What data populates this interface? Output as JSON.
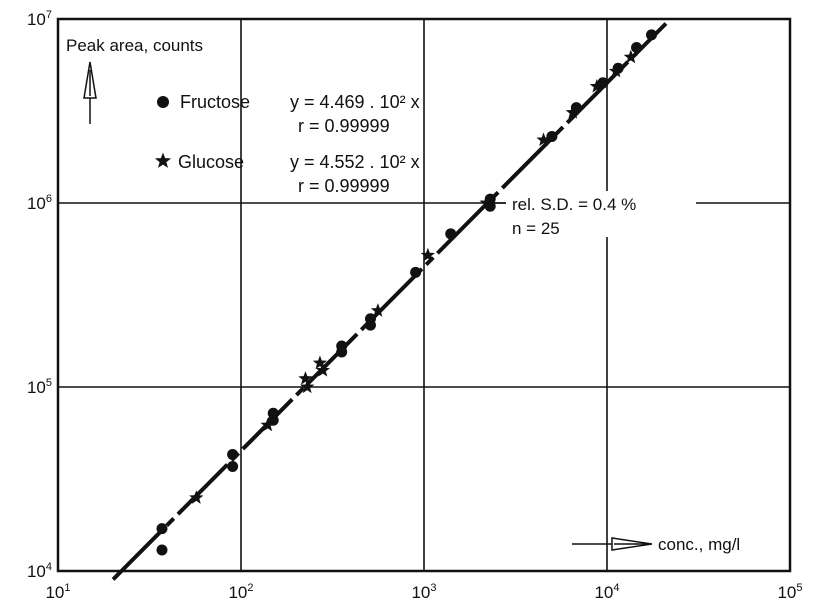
{
  "chart_data": {
    "type": "scatter",
    "xscale": "log",
    "yscale": "log",
    "xlim": [
      10,
      100000
    ],
    "ylim": [
      10000,
      10000000
    ],
    "grid": true,
    "x_ticks": [
      {
        "base": "10",
        "exp": "1"
      },
      {
        "base": "10",
        "exp": "2"
      },
      {
        "base": "10",
        "exp": "3"
      },
      {
        "base": "10",
        "exp": "4"
      },
      {
        "base": "10",
        "exp": "5"
      }
    ],
    "y_ticks": [
      {
        "base": "10",
        "exp": "4"
      },
      {
        "base": "10",
        "exp": "5"
      },
      {
        "base": "10",
        "exp": "6"
      },
      {
        "base": "10",
        "exp": "7"
      }
    ],
    "ylabel": "Peak area, counts",
    "xlabel": "conc., mg/l",
    "legend_position": "top-left",
    "series": [
      {
        "name": "Fructose",
        "marker": "circle",
        "equation": "y = 4.469 . 10² x",
        "r": "r = 0.99999",
        "x": [
          37,
          37,
          90,
          90,
          150,
          150,
          355,
          355,
          510,
          510,
          900,
          1400,
          2300,
          2300,
          5000,
          6800,
          9500,
          11500,
          14500,
          17500
        ],
        "y": [
          17000,
          13000,
          43000,
          37000,
          72000,
          66000,
          167000,
          155000,
          235000,
          217000,
          420000,
          680000,
          1050000,
          960000,
          2300000,
          3300000,
          4500000,
          5400000,
          7000000,
          8200000
        ]
      },
      {
        "name": "Glucose",
        "marker": "star",
        "equation": "y = 4.552 . 10² x",
        "r": "r = 0.99999",
        "x": [
          57,
          140,
          225,
          230,
          270,
          280,
          560,
          1050,
          2200,
          4500,
          6500,
          8800,
          11200,
          13500
        ],
        "y": [
          25000,
          62000,
          111000,
          100000,
          135000,
          123000,
          260000,
          520000,
          1000000,
          2200000,
          3100000,
          4300000,
          5200000,
          6200000
        ]
      }
    ],
    "fit_line": {
      "slope": 450,
      "x_range": [
        20,
        21000
      ]
    },
    "annotations": {
      "rel_sd": "rel. S.D. = 0.4 %",
      "n": "n = 25",
      "rel_sd_y": 1000000
    },
    "colors": {
      "ink": "#111111",
      "background": "#ffffff"
    }
  }
}
